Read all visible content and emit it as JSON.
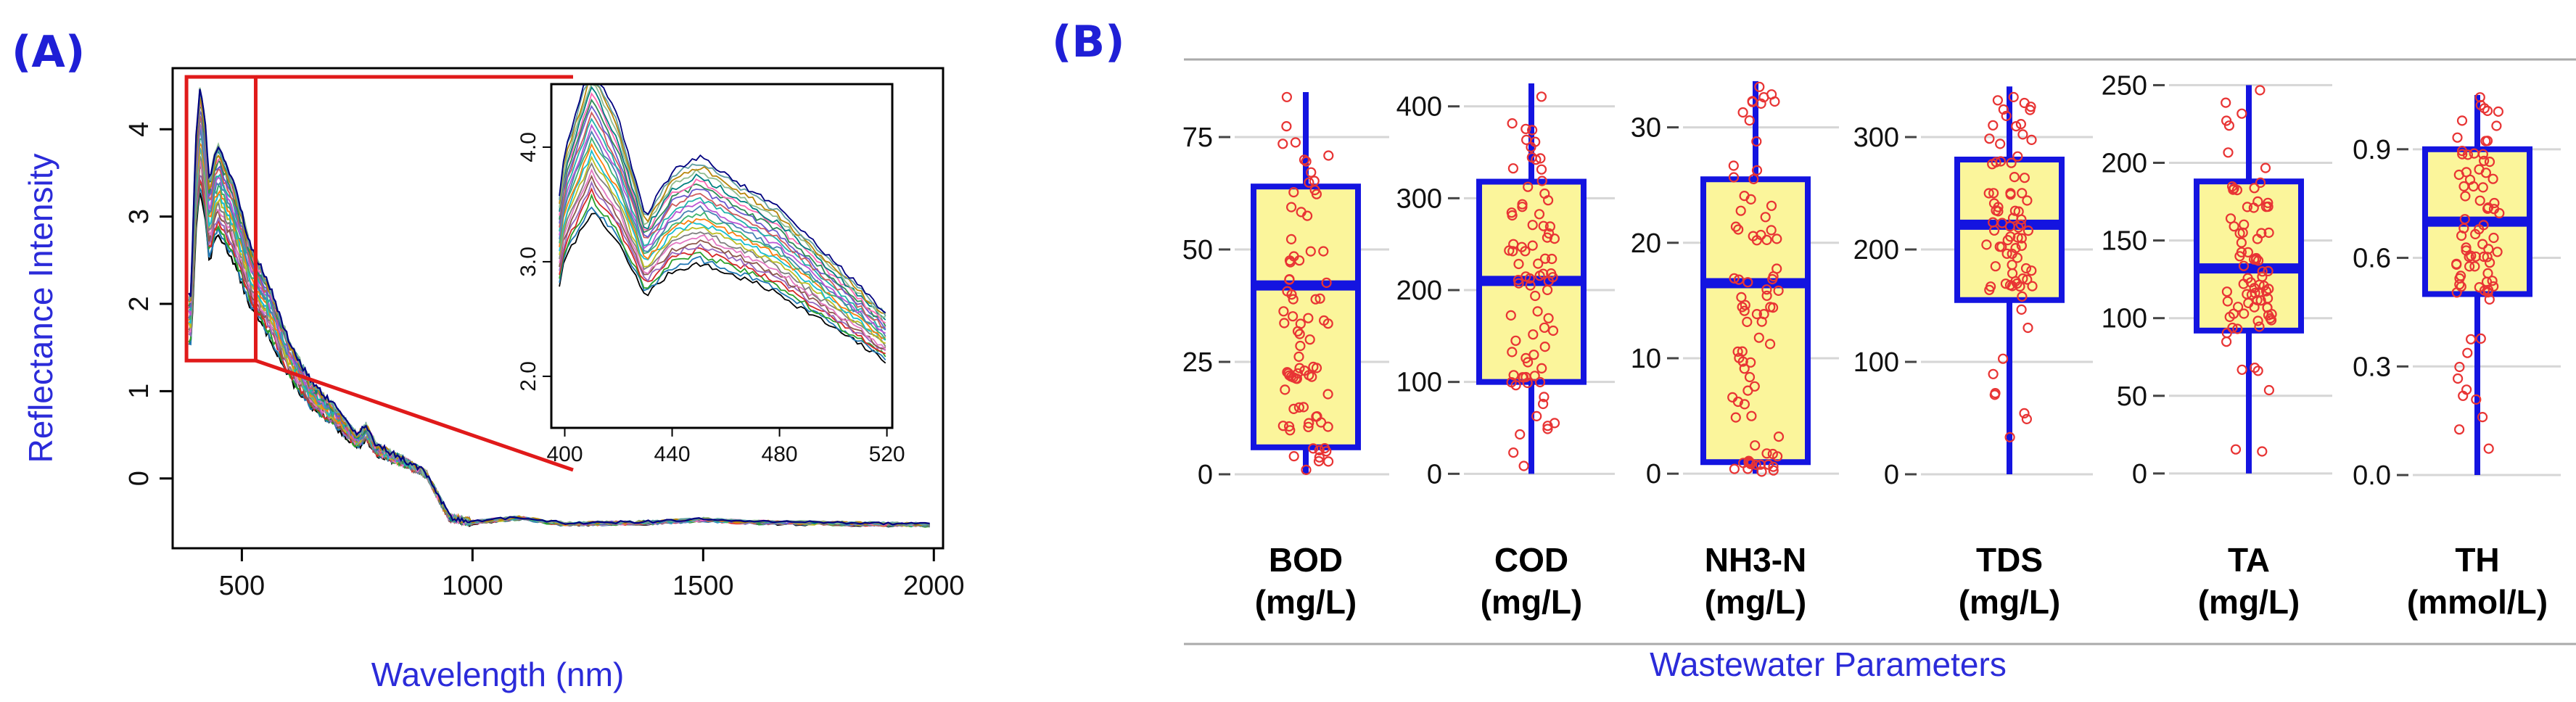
{
  "panels": {
    "a_label": "(A)",
    "b_label": "(B)"
  },
  "chart_data": [
    {
      "type": "line",
      "panel": "(A)",
      "title": "",
      "xlabel": "Wavelength (nm)",
      "ylabel": "Reflectance Intensity",
      "xlim": [
        350,
        2020
      ],
      "ylim": [
        -0.8,
        4.7
      ],
      "xticks": [
        500,
        1000,
        1500,
        2000
      ],
      "yticks": [
        0,
        1,
        2,
        3,
        4
      ],
      "n_series": 24,
      "base_curve": [
        [
          390,
          1.9
        ],
        [
          400,
          3.5
        ],
        [
          410,
          4.1
        ],
        [
          420,
          3.7
        ],
        [
          430,
          3.05
        ],
        [
          440,
          3.35
        ],
        [
          450,
          3.45
        ],
        [
          480,
          3.1
        ],
        [
          520,
          2.4
        ],
        [
          560,
          2.0
        ],
        [
          600,
          1.45
        ],
        [
          650,
          1.0
        ],
        [
          700,
          0.75
        ],
        [
          750,
          0.45
        ],
        [
          770,
          0.55
        ],
        [
          790,
          0.35
        ],
        [
          850,
          0.2
        ],
        [
          900,
          0.05
        ],
        [
          950,
          -0.45
        ],
        [
          1000,
          -0.5
        ],
        [
          1100,
          -0.45
        ],
        [
          1200,
          -0.52
        ],
        [
          1400,
          -0.5
        ],
        [
          1500,
          -0.47
        ],
        [
          1600,
          -0.5
        ],
        [
          2000,
          -0.53
        ]
      ],
      "zoom_box": {
        "x_range": [
          380,
          530
        ],
        "y_range": [
          1.35,
          4.6
        ]
      },
      "inset": {
        "xlim": [
          395,
          522
        ],
        "ylim": [
          1.55,
          4.55
        ],
        "xticks": [
          400,
          440,
          480,
          520
        ],
        "yticks": [
          2.0,
          3.0,
          4.0
        ],
        "y_tick_labels": [
          "2.0",
          "3.0",
          "4.0"
        ]
      }
    },
    {
      "type": "box",
      "panel": "(B)",
      "xlabel": "Wastewater Parameters",
      "boxes": [
        {
          "name": "BOD",
          "unit": "(mg/L)",
          "ylim": [
            -5,
            90
          ],
          "ticks": [
            0,
            25,
            50,
            75
          ],
          "tick_labels": [
            "0",
            "25",
            "50",
            "75"
          ],
          "min": 0,
          "q1": 6,
          "median": 42,
          "q3": 64,
          "max": 85
        },
        {
          "name": "COD",
          "unit": "(mg/L)",
          "ylim": [
            -25,
            440
          ],
          "ticks": [
            0,
            100,
            200,
            300,
            400
          ],
          "tick_labels": [
            "0",
            "100",
            "200",
            "300",
            "400"
          ],
          "min": 0,
          "q1": 100,
          "median": 210,
          "q3": 318,
          "max": 425
        },
        {
          "name": "NH3-N",
          "unit": "(mg/L)",
          "ylim": [
            -2,
            35
          ],
          "ticks": [
            0,
            10,
            20,
            30
          ],
          "tick_labels": [
            "0",
            "10",
            "20",
            "30"
          ],
          "min": 0,
          "q1": 1,
          "median": 16.5,
          "q3": 25.5,
          "max": 34
        },
        {
          "name": "TDS",
          "unit": "(mg/L)",
          "ylim": [
            -20,
            360
          ],
          "ticks": [
            0,
            100,
            200,
            300
          ],
          "tick_labels": [
            "0",
            "100",
            "200",
            "300"
          ],
          "min": 0,
          "q1": 155,
          "median": 222,
          "q3": 280,
          "max": 345
        },
        {
          "name": "TA",
          "unit": "(mg/L)",
          "ylim": [
            -15,
            260
          ],
          "ticks": [
            0,
            50,
            100,
            150,
            200,
            250
          ],
          "tick_labels": [
            "0",
            "50",
            "100",
            "150",
            "200",
            "250"
          ],
          "min": 0,
          "q1": 92,
          "median": 132,
          "q3": 188,
          "max": 250
        },
        {
          "name": "TH",
          "unit": "(mmol/L)",
          "ylim": [
            -0.06,
            1.12
          ],
          "ticks": [
            0.0,
            0.3,
            0.6,
            0.9
          ],
          "tick_labels": [
            "0.0",
            "0.3",
            "0.6",
            "0.9"
          ],
          "min": 0,
          "q1": 0.5,
          "median": 0.7,
          "q3": 0.9,
          "max": 1.05
        }
      ],
      "colors": {
        "box_fill": "#fbf59b",
        "box_stroke": "#1414e0",
        "points": "#e83434",
        "grid": "#d6d6d6"
      }
    }
  ],
  "colors": {
    "panel_label": "#1f1fd6",
    "axis_title": "#2b2bd9",
    "zoom_box": "#e01a1a"
  }
}
